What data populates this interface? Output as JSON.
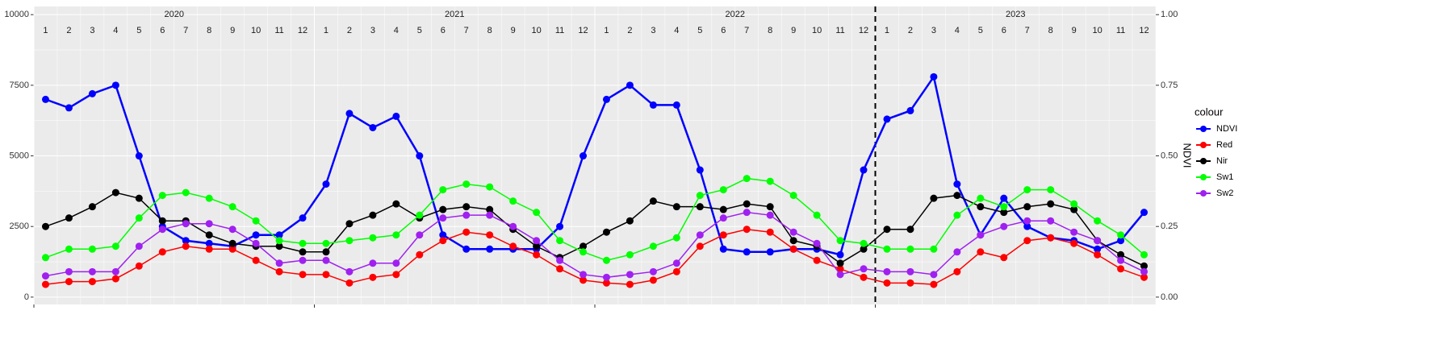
{
  "chart_data": {
    "type": "line",
    "year_labels": [
      "2020",
      "2021",
      "2022",
      "2023"
    ],
    "month_labels": [
      "1",
      "2",
      "3",
      "4",
      "5",
      "6",
      "7",
      "8",
      "9",
      "10",
      "11",
      "12"
    ],
    "x": [
      "2020-01",
      "2020-02",
      "2020-03",
      "2020-04",
      "2020-05",
      "2020-06",
      "2020-07",
      "2020-08",
      "2020-09",
      "2020-10",
      "2020-11",
      "2020-12",
      "2021-01",
      "2021-02",
      "2021-03",
      "2021-04",
      "2021-05",
      "2021-06",
      "2021-07",
      "2021-08",
      "2021-09",
      "2021-10",
      "2021-11",
      "2021-12",
      "2022-01",
      "2022-02",
      "2022-03",
      "2022-04",
      "2022-05",
      "2022-06",
      "2022-07",
      "2022-08",
      "2022-09",
      "2022-10",
      "2022-11",
      "2022-12",
      "2023-01",
      "2023-02",
      "2023-03",
      "2023-04",
      "2023-05",
      "2023-06",
      "2023-07",
      "2023-08",
      "2023-09",
      "2023-10",
      "2023-11",
      "2023-12"
    ],
    "xlim": [
      "2020-01",
      "2023-12"
    ],
    "xticks": [
      "2020-01",
      "2021-01",
      "2022-01",
      "2023-01"
    ],
    "vline": "2023-01",
    "ylim": [
      -260,
      10290
    ],
    "yticks": [
      0,
      2500,
      5000,
      7500,
      10000
    ],
    "y2label": "NDVI",
    "y2lim": [
      -0.026,
      1.029
    ],
    "y2ticks": [
      {
        "value": 0,
        "label": "0.00"
      },
      {
        "value": 0.25,
        "label": "0.25"
      },
      {
        "value": 0.5,
        "label": "0.50"
      },
      {
        "value": 0.75,
        "label": "0.75"
      },
      {
        "value": 1,
        "label": "1.00"
      }
    ],
    "legend_title": "colour",
    "legend_position": "right",
    "grid": true,
    "series": [
      {
        "name": "NDVI",
        "color": "#0000ff",
        "axis": "y2",
        "values": [
          0.7,
          0.67,
          0.72,
          0.75,
          0.5,
          0.25,
          0.2,
          0.19,
          0.18,
          0.22,
          0.22,
          0.28,
          0.4,
          0.65,
          0.6,
          0.64,
          0.5,
          0.22,
          0.17,
          0.17,
          0.17,
          0.17,
          0.25,
          0.5,
          0.7,
          0.75,
          0.68,
          0.68,
          0.45,
          0.17,
          0.16,
          0.16,
          0.17,
          0.17,
          0.15,
          0.45,
          0.63,
          0.66,
          0.78,
          0.4,
          0.22,
          0.35,
          0.25,
          0.21,
          0.2,
          0.17,
          0.2,
          0.3
        ]
      },
      {
        "name": "Red",
        "color": "#ff0000",
        "values": [
          450,
          550,
          550,
          650,
          1100,
          1600,
          1800,
          1700,
          1700,
          1300,
          900,
          800,
          800,
          500,
          700,
          800,
          1500,
          2000,
          2300,
          2200,
          1800,
          1500,
          1000,
          600,
          500,
          450,
          600,
          900,
          1800,
          2200,
          2400,
          2300,
          1700,
          1300,
          1000,
          700,
          500,
          500,
          450,
          900,
          1600,
          1400,
          2000,
          2100,
          1900,
          1500,
          1000,
          700
        ]
      },
      {
        "name": "Nir",
        "color": "#000000",
        "values": [
          2500,
          2800,
          3200,
          3700,
          3500,
          2700,
          2700,
          2200,
          1900,
          1800,
          1800,
          1600,
          1600,
          2600,
          2900,
          3300,
          2800,
          3100,
          3200,
          3100,
          2400,
          1800,
          1400,
          1800,
          2300,
          2700,
          3400,
          3200,
          3200,
          3100,
          3300,
          3200,
          2000,
          1800,
          1200,
          1700,
          2400,
          2400,
          3500,
          3600,
          3200,
          3000,
          3200,
          3300,
          3100,
          2000,
          1500,
          1100
        ]
      },
      {
        "name": "Sw1",
        "color": "#00ff00",
        "values": [
          1400,
          1700,
          1700,
          1800,
          2800,
          3600,
          3700,
          3500,
          3200,
          2700,
          2000,
          1900,
          1900,
          2000,
          2100,
          2200,
          2900,
          3800,
          4000,
          3900,
          3400,
          3000,
          2000,
          1600,
          1300,
          1500,
          1800,
          2100,
          3600,
          3800,
          4200,
          4100,
          3600,
          2900,
          2000,
          1900,
          1700,
          1700,
          1700,
          2900,
          3500,
          3200,
          3800,
          3800,
          3300,
          2700,
          2200,
          1500
        ]
      },
      {
        "name": "Sw2",
        "color": "#a020f0",
        "values": [
          750,
          900,
          900,
          900,
          1800,
          2400,
          2600,
          2600,
          2400,
          1900,
          1200,
          1300,
          1300,
          900,
          1200,
          1200,
          2200,
          2800,
          2900,
          2900,
          2500,
          2000,
          1300,
          800,
          700,
          800,
          900,
          1200,
          2200,
          2800,
          3000,
          2900,
          2300,
          1900,
          800,
          1000,
          900,
          900,
          800,
          1600,
          2200,
          2500,
          2700,
          2700,
          2300,
          2000,
          1300,
          900
        ]
      }
    ]
  }
}
